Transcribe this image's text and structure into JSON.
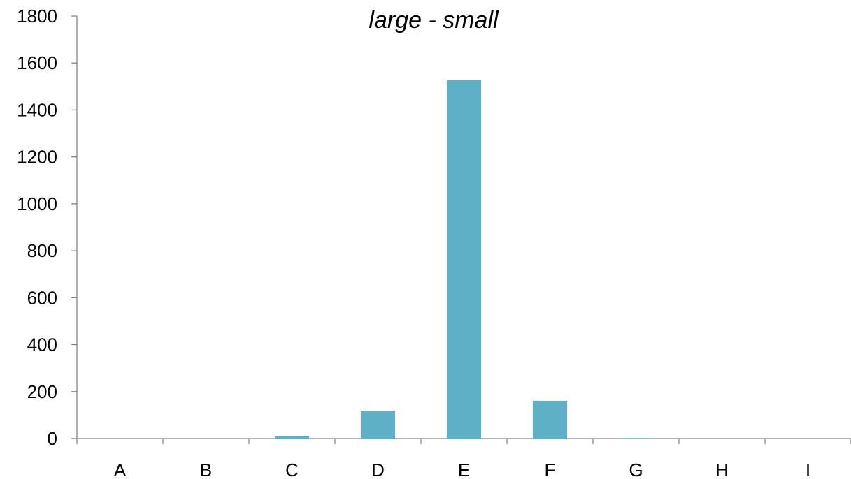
{
  "chart_data": {
    "type": "bar",
    "title": "large - small",
    "xlabel": "",
    "ylabel": "",
    "categories": [
      "A",
      "B",
      "C",
      "D",
      "E",
      "F",
      "G",
      "H",
      "I"
    ],
    "values": [
      0,
      0,
      10,
      118,
      1527,
      161,
      2,
      0,
      0
    ],
    "ylim": [
      0,
      1800
    ],
    "yticks": [
      0,
      200,
      400,
      600,
      800,
      1000,
      1200,
      1400,
      1600,
      1800
    ],
    "grid": false,
    "legend": "none",
    "bar_color": "#5fb0c6"
  }
}
